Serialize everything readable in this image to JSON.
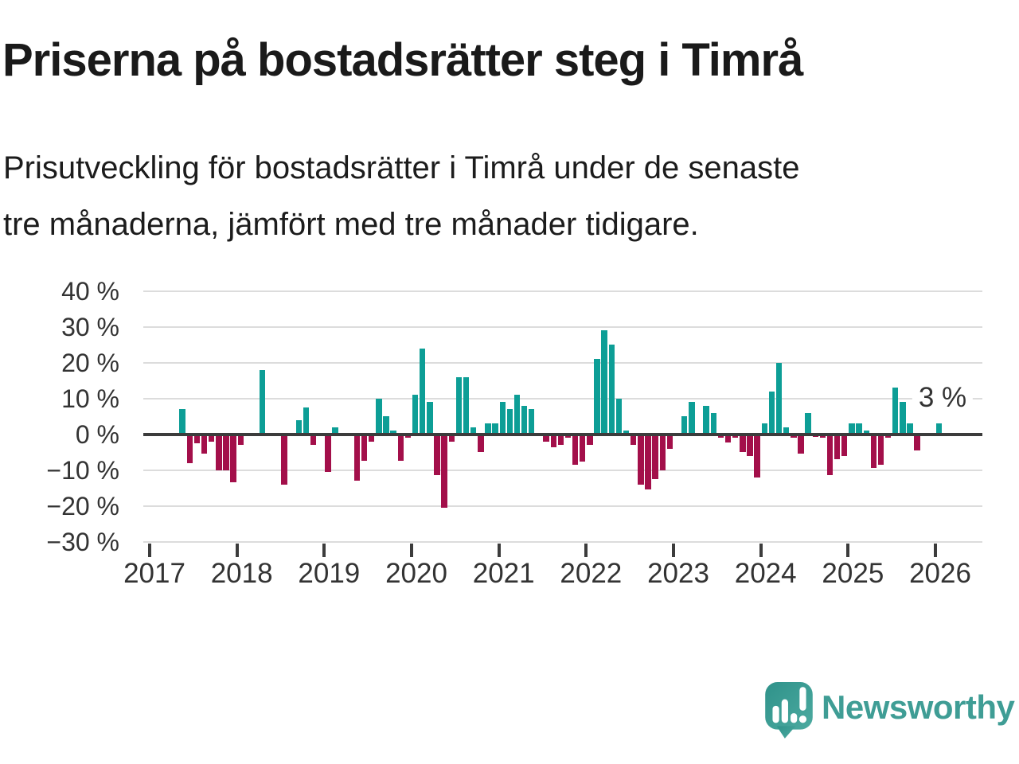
{
  "header": {
    "title": "Priserna på bostadsrätter steg i Timrå",
    "subtitle_lines": [
      "Prisutveckling för bostadsrätter i Timrå under de senaste",
      "tre månaderna, jämfört med tre månader tidigare."
    ]
  },
  "chart_data": {
    "type": "bar",
    "unit": "%",
    "ylim": [
      -30,
      40
    ],
    "grid": true,
    "positive_color": "#0d9e96",
    "negative_color": "#a30f4a",
    "y_ticks": [
      {
        "value": 40,
        "label": "40 %"
      },
      {
        "value": 30,
        "label": "30 %"
      },
      {
        "value": 20,
        "label": "20 %"
      },
      {
        "value": 10,
        "label": "10 %"
      },
      {
        "value": 0,
        "label": "0 %"
      },
      {
        "value": -10,
        "label": "−10 %"
      },
      {
        "value": -20,
        "label": "−20 %"
      },
      {
        "value": -30,
        "label": "−30 %"
      }
    ],
    "x_ticks": [
      "2017",
      "2018",
      "2019",
      "2020",
      "2021",
      "2022",
      "2023",
      "2024",
      "2025",
      "2026"
    ],
    "annotation": {
      "text": "3 %"
    },
    "series": [
      {
        "date": "2017-05",
        "value": 7
      },
      {
        "date": "2017-06",
        "value": -8
      },
      {
        "date": "2017-07",
        "value": -2.5
      },
      {
        "date": "2017-08",
        "value": -5.5
      },
      {
        "date": "2017-09",
        "value": -2
      },
      {
        "date": "2017-10",
        "value": -10
      },
      {
        "date": "2017-11",
        "value": -10
      },
      {
        "date": "2017-12",
        "value": -13.5
      },
      {
        "date": "2018-01",
        "value": -3
      },
      {
        "date": "2018-04",
        "value": 18
      },
      {
        "date": "2018-07",
        "value": -14
      },
      {
        "date": "2018-09",
        "value": 4
      },
      {
        "date": "2018-10",
        "value": 7.5
      },
      {
        "date": "2018-11",
        "value": -3
      },
      {
        "date": "2019-01",
        "value": -10.5
      },
      {
        "date": "2019-02",
        "value": 2
      },
      {
        "date": "2019-05",
        "value": -13
      },
      {
        "date": "2019-06",
        "value": -7.5
      },
      {
        "date": "2019-07",
        "value": -2
      },
      {
        "date": "2019-08",
        "value": 10
      },
      {
        "date": "2019-09",
        "value": 5
      },
      {
        "date": "2019-10",
        "value": 1
      },
      {
        "date": "2019-11",
        "value": -7.5
      },
      {
        "date": "2019-12",
        "value": -1
      },
      {
        "date": "2020-01",
        "value": 11
      },
      {
        "date": "2020-02",
        "value": 24
      },
      {
        "date": "2020-03",
        "value": 9
      },
      {
        "date": "2020-04",
        "value": -11.5
      },
      {
        "date": "2020-05",
        "value": -20.5
      },
      {
        "date": "2020-06",
        "value": -2
      },
      {
        "date": "2020-07",
        "value": 16
      },
      {
        "date": "2020-08",
        "value": 16
      },
      {
        "date": "2020-09",
        "value": 2
      },
      {
        "date": "2020-10",
        "value": -5
      },
      {
        "date": "2020-11",
        "value": 3
      },
      {
        "date": "2020-12",
        "value": 3
      },
      {
        "date": "2021-01",
        "value": 9
      },
      {
        "date": "2021-02",
        "value": 7
      },
      {
        "date": "2021-03",
        "value": 11
      },
      {
        "date": "2021-04",
        "value": 8
      },
      {
        "date": "2021-05",
        "value": 7
      },
      {
        "date": "2021-07",
        "value": -2
      },
      {
        "date": "2021-08",
        "value": -3.7
      },
      {
        "date": "2021-09",
        "value": -3
      },
      {
        "date": "2021-10",
        "value": -1
      },
      {
        "date": "2021-11",
        "value": -8.5
      },
      {
        "date": "2021-12",
        "value": -7.7
      },
      {
        "date": "2022-01",
        "value": -3
      },
      {
        "date": "2022-02",
        "value": 21
      },
      {
        "date": "2022-03",
        "value": 29
      },
      {
        "date": "2022-04",
        "value": 25
      },
      {
        "date": "2022-05",
        "value": 10
      },
      {
        "date": "2022-06",
        "value": 1
      },
      {
        "date": "2022-07",
        "value": -3
      },
      {
        "date": "2022-08",
        "value": -14
      },
      {
        "date": "2022-09",
        "value": -15.5
      },
      {
        "date": "2022-10",
        "value": -12.5
      },
      {
        "date": "2022-11",
        "value": -10
      },
      {
        "date": "2022-12",
        "value": -4
      },
      {
        "date": "2023-02",
        "value": 5
      },
      {
        "date": "2023-03",
        "value": 9
      },
      {
        "date": "2023-05",
        "value": 8
      },
      {
        "date": "2023-06",
        "value": 6
      },
      {
        "date": "2023-07",
        "value": -1
      },
      {
        "date": "2023-08",
        "value": -2.3
      },
      {
        "date": "2023-09",
        "value": -1
      },
      {
        "date": "2023-10",
        "value": -5
      },
      {
        "date": "2023-11",
        "value": -6
      },
      {
        "date": "2023-12",
        "value": -12
      },
      {
        "date": "2024-01",
        "value": 3
      },
      {
        "date": "2024-02",
        "value": 12
      },
      {
        "date": "2024-03",
        "value": 20
      },
      {
        "date": "2024-04",
        "value": 2
      },
      {
        "date": "2024-05",
        "value": -1
      },
      {
        "date": "2024-06",
        "value": -5.5
      },
      {
        "date": "2024-07",
        "value": 6
      },
      {
        "date": "2024-08",
        "value": -0.7
      },
      {
        "date": "2024-09",
        "value": -1
      },
      {
        "date": "2024-10",
        "value": -11.5
      },
      {
        "date": "2024-11",
        "value": -7
      },
      {
        "date": "2024-12",
        "value": -6
      },
      {
        "date": "2025-01",
        "value": 3
      },
      {
        "date": "2025-02",
        "value": 3
      },
      {
        "date": "2025-03",
        "value": 1
      },
      {
        "date": "2025-04",
        "value": -9.5
      },
      {
        "date": "2025-05",
        "value": -8.5
      },
      {
        "date": "2025-06",
        "value": -1
      },
      {
        "date": "2025-07",
        "value": 13
      },
      {
        "date": "2025-08",
        "value": 9
      },
      {
        "date": "2025-09",
        "value": 3
      },
      {
        "date": "2025-10",
        "value": -4.5
      },
      {
        "date": "2026-01",
        "value": 3
      }
    ]
  },
  "footer": {
    "brand": "Newsworthy",
    "logo_icon": "speech-bubble-bar-chart-exclamation",
    "brand_color": "#3f9d95"
  }
}
